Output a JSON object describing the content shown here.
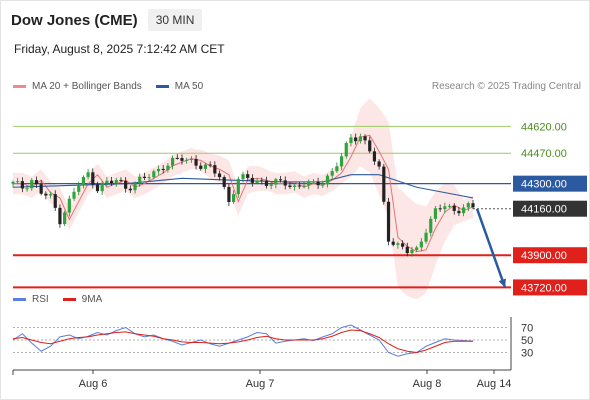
{
  "header": {
    "instrument": "Dow Jones (CME)",
    "timeframe": "30 MIN",
    "datetime": "Friday, August 8, 2025 7:12:42 AM CET"
  },
  "legend": {
    "items": [
      {
        "label": "MA 20 + Bollinger Bands",
        "color": "#f08a8a"
      },
      {
        "label": "MA 50",
        "color": "#2c5aa0"
      }
    ],
    "copyright": "Research © 2025 Trading Central"
  },
  "rsi_legend": {
    "items": [
      {
        "label": "RSI",
        "color": "#5b7fdc"
      },
      {
        "label": "9MA",
        "color": "#e0201a"
      }
    ]
  },
  "chart_data": {
    "type": "candlestick",
    "ylim": [
      43700,
      44790
    ],
    "levels": [
      {
        "value": 44620,
        "label": "44620.00",
        "kind": "resistance",
        "color": "#9ccc65"
      },
      {
        "value": 44470,
        "label": "44470.00",
        "kind": "resistance",
        "color": "#9ccc65"
      },
      {
        "value": 44300,
        "label": "44300.00",
        "kind": "pivot",
        "color": "#2c5aa0"
      },
      {
        "value": 44160,
        "label": "44160.00",
        "kind": "last_price",
        "color": "#333333"
      },
      {
        "value": 43900,
        "label": "43900.00",
        "kind": "support",
        "color": "#e0201a"
      },
      {
        "value": 43720,
        "label": "43720.00",
        "kind": "support",
        "color": "#e0201a"
      }
    ],
    "x_tick_labels": [
      "Aug 6",
      "Aug 7",
      "Aug 8",
      "Aug 14"
    ],
    "price_path": [
      [
        0,
        44300
      ],
      [
        2,
        44280
      ],
      [
        4,
        44320
      ],
      [
        6,
        44250
      ],
      [
        8,
        44220
      ],
      [
        10,
        44100
      ],
      [
        12,
        44200
      ],
      [
        14,
        44300
      ],
      [
        16,
        44350
      ],
      [
        18,
        44280
      ],
      [
        20,
        44300
      ],
      [
        22,
        44320
      ],
      [
        24,
        44280
      ],
      [
        26,
        44300
      ],
      [
        28,
        44330
      ],
      [
        30,
        44360
      ],
      [
        32,
        44400
      ],
      [
        34,
        44420
      ],
      [
        36,
        44440
      ],
      [
        38,
        44430
      ],
      [
        40,
        44400
      ],
      [
        42,
        44380
      ],
      [
        44,
        44350
      ],
      [
        46,
        44200
      ],
      [
        48,
        44320
      ],
      [
        50,
        44330
      ],
      [
        52,
        44320
      ],
      [
        54,
        44300
      ],
      [
        56,
        44300
      ],
      [
        58,
        44310
      ],
      [
        60,
        44280
      ],
      [
        62,
        44300
      ],
      [
        64,
        44290
      ],
      [
        66,
        44320
      ],
      [
        68,
        44360
      ],
      [
        70,
        44450
      ],
      [
        72,
        44560
      ],
      [
        74,
        44570
      ],
      [
        76,
        44480
      ],
      [
        78,
        44380
      ],
      [
        80,
        44000
      ],
      [
        82,
        43950
      ],
      [
        84,
        43920
      ],
      [
        86,
        43930
      ],
      [
        88,
        44050
      ],
      [
        90,
        44140
      ],
      [
        92,
        44180
      ],
      [
        94,
        44150
      ],
      [
        96,
        44170
      ],
      [
        98,
        44160
      ]
    ],
    "ma50": [
      [
        0,
        44280
      ],
      [
        12,
        44290
      ],
      [
        24,
        44300
      ],
      [
        36,
        44330
      ],
      [
        46,
        44320
      ],
      [
        58,
        44310
      ],
      [
        66,
        44310
      ],
      [
        72,
        44350
      ],
      [
        78,
        44350
      ],
      [
        86,
        44280
      ],
      [
        94,
        44240
      ],
      [
        98,
        44220
      ]
    ],
    "projection": {
      "from": 44160,
      "to": 43720
    },
    "rsi": {
      "ylim": [
        10,
        90
      ],
      "ticks": [
        70,
        50,
        30
      ],
      "rsi_values": [
        50,
        60,
        45,
        32,
        40,
        55,
        58,
        52,
        56,
        62,
        58,
        65,
        70,
        60,
        55,
        58,
        52,
        48,
        42,
        46,
        50,
        44,
        40,
        45,
        50,
        55,
        62,
        60,
        45,
        48,
        50,
        52,
        49,
        55,
        60,
        70,
        74,
        66,
        58,
        50,
        30,
        24,
        28,
        30,
        40,
        46,
        52,
        50,
        49,
        48
      ],
      "ma9_values": [
        52,
        54,
        50,
        46,
        44,
        48,
        52,
        54,
        55,
        58,
        60,
        62,
        63,
        60,
        58,
        56,
        52,
        50,
        47,
        46,
        46,
        45,
        44,
        45,
        47,
        50,
        54,
        56,
        52,
        50,
        50,
        50,
        50,
        52,
        56,
        62,
        66,
        65,
        60,
        54,
        44,
        36,
        32,
        30,
        34,
        40,
        46,
        48,
        48,
        48
      ]
    }
  }
}
